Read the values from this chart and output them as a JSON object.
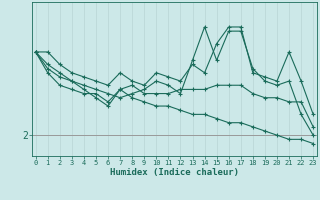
{
  "title": "",
  "xlabel": "Humidex (Indice chaleur)",
  "bg_color": "#cce8e8",
  "line_color": "#1a6b5a",
  "grid_color": "#b8d4d4",
  "x_ticks": [
    0,
    1,
    2,
    3,
    4,
    5,
    6,
    7,
    8,
    9,
    10,
    11,
    12,
    13,
    14,
    15,
    16,
    17,
    18,
    19,
    20,
    21,
    22,
    23
  ],
  "y_tick_labels": [
    "2"
  ],
  "y_tick_positions": [
    2.0
  ],
  "xlim": [
    -0.3,
    23.3
  ],
  "ylim": [
    1.5,
    5.2
  ],
  "lines": [
    {
      "x": [
        0,
        1,
        2,
        3,
        4,
        5,
        6,
        7,
        8,
        9,
        10,
        11,
        12,
        13,
        14,
        15,
        16,
        17,
        18,
        19,
        20,
        21,
        22,
        23
      ],
      "y": [
        4.0,
        4.0,
        3.7,
        3.5,
        3.4,
        3.3,
        3.2,
        3.5,
        3.3,
        3.2,
        3.5,
        3.4,
        3.3,
        3.7,
        3.5,
        4.2,
        4.6,
        4.6,
        3.5,
        3.4,
        3.3,
        4.0,
        3.3,
        2.5
      ]
    },
    {
      "x": [
        0,
        1,
        2,
        3,
        4,
        5,
        6,
        7,
        8,
        9,
        10,
        11,
        12,
        13,
        14,
        15,
        16,
        17,
        18,
        19,
        20,
        21,
        22,
        23
      ],
      "y": [
        4.0,
        3.6,
        3.4,
        3.3,
        3.2,
        3.1,
        3.0,
        2.9,
        3.0,
        3.1,
        3.3,
        3.2,
        3.0,
        3.8,
        4.6,
        3.8,
        4.5,
        4.5,
        3.6,
        3.3,
        3.2,
        3.3,
        2.5,
        2.0
      ]
    },
    {
      "x": [
        0,
        1,
        2,
        3,
        4,
        5,
        6,
        7,
        8,
        9,
        10,
        11,
        12,
        13,
        14,
        15,
        16,
        17,
        18,
        19,
        20,
        21,
        22,
        23
      ],
      "y": [
        4.0,
        3.5,
        3.2,
        3.1,
        3.0,
        3.0,
        2.8,
        3.1,
        3.2,
        3.0,
        3.0,
        3.0,
        3.1,
        3.1,
        3.1,
        3.2,
        3.2,
        3.2,
        3.0,
        2.9,
        2.9,
        2.8,
        2.8,
        2.2
      ]
    },
    {
      "x": [
        0,
        1,
        2,
        3,
        4,
        5,
        6,
        7,
        8,
        9,
        10,
        11,
        12,
        13,
        14,
        15,
        16,
        17,
        18,
        19,
        20,
        21,
        22,
        23
      ],
      "y": [
        4.0,
        3.7,
        3.5,
        3.3,
        3.1,
        2.9,
        2.7,
        3.1,
        2.9,
        2.8,
        2.7,
        2.7,
        2.6,
        2.5,
        2.5,
        2.4,
        2.3,
        2.3,
        2.2,
        2.1,
        2.0,
        1.9,
        1.9,
        1.8
      ]
    }
  ]
}
